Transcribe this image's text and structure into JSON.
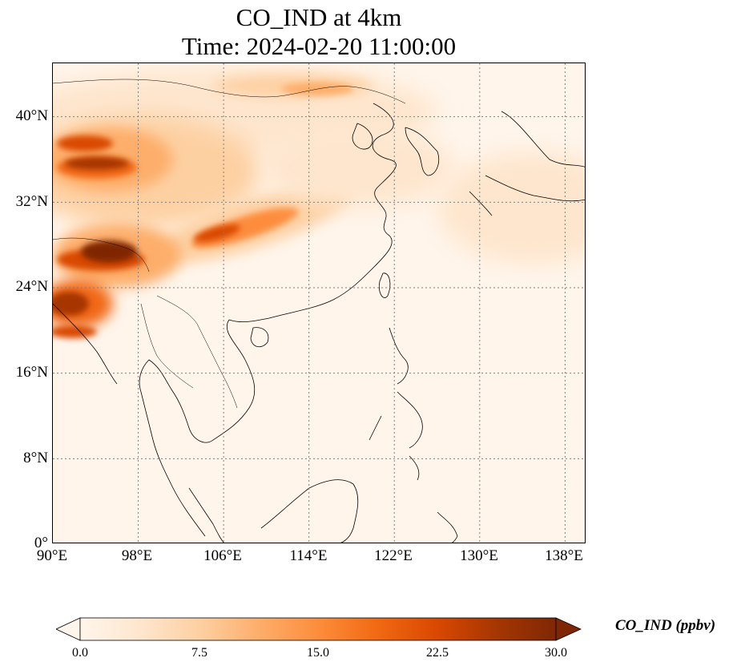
{
  "title": {
    "line1": "CO_IND at 4km",
    "line2": "Time: 2024-02-20 11:00:00"
  },
  "map": {
    "lon_range": [
      90,
      140
    ],
    "lat_range": [
      0,
      45
    ],
    "lat_ticks": [
      "40°N",
      "32°N",
      "24°N",
      "16°N",
      "8°N",
      "0°"
    ],
    "lon_ticks": [
      "90°E",
      "98°E",
      "106°E",
      "114°E",
      "122°E",
      "130°E",
      "138°E"
    ],
    "gridlines": "dotted"
  },
  "colorbar": {
    "label": "CO_IND (ppbv)",
    "ticks": [
      "0.0",
      "7.5",
      "15.0",
      "22.5",
      "30.0"
    ],
    "range": [
      0,
      30
    ],
    "extend": "both",
    "colormap": "OrRd",
    "colors": [
      "#fff5eb",
      "#fee6ce",
      "#fdd0a2",
      "#fdae6b",
      "#fd8d3c",
      "#f16913",
      "#d94801",
      "#a63603",
      "#7f2704"
    ]
  }
}
